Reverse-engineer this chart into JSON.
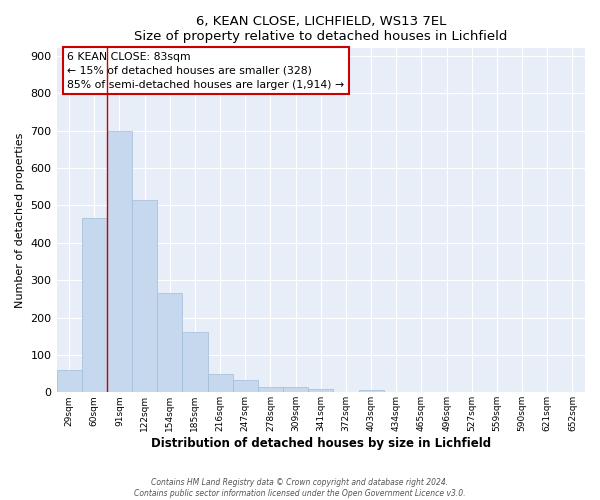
{
  "title": "6, KEAN CLOSE, LICHFIELD, WS13 7EL",
  "subtitle": "Size of property relative to detached houses in Lichfield",
  "xlabel": "Distribution of detached houses by size in Lichfield",
  "ylabel": "Number of detached properties",
  "bar_labels": [
    "29sqm",
    "60sqm",
    "91sqm",
    "122sqm",
    "154sqm",
    "185sqm",
    "216sqm",
    "247sqm",
    "278sqm",
    "309sqm",
    "341sqm",
    "372sqm",
    "403sqm",
    "434sqm",
    "465sqm",
    "496sqm",
    "527sqm",
    "559sqm",
    "590sqm",
    "621sqm",
    "652sqm"
  ],
  "bar_values": [
    60,
    467,
    700,
    515,
    265,
    160,
    48,
    33,
    13,
    13,
    10,
    0,
    7,
    0,
    0,
    0,
    0,
    0,
    0,
    0,
    0
  ],
  "bar_color": "#c5d8ed",
  "bar_edge_color": "#a0bdd8",
  "ylim": [
    0,
    920
  ],
  "yticks": [
    0,
    100,
    200,
    300,
    400,
    500,
    600,
    700,
    800,
    900
  ],
  "vline_x": 1.5,
  "vline_color": "#cc0000",
  "annotation_title": "6 KEAN CLOSE: 83sqm",
  "annotation_line1": "← 15% of detached houses are smaller (328)",
  "annotation_line2": "85% of semi-detached houses are larger (1,914) →",
  "annotation_box_color": "#cc0000",
  "fig_bg": "#ffffff",
  "plot_bg": "#e8eef8",
  "grid_color": "#ffffff",
  "footer_line1": "Contains HM Land Registry data © Crown copyright and database right 2024.",
  "footer_line2": "Contains public sector information licensed under the Open Government Licence v3.0."
}
